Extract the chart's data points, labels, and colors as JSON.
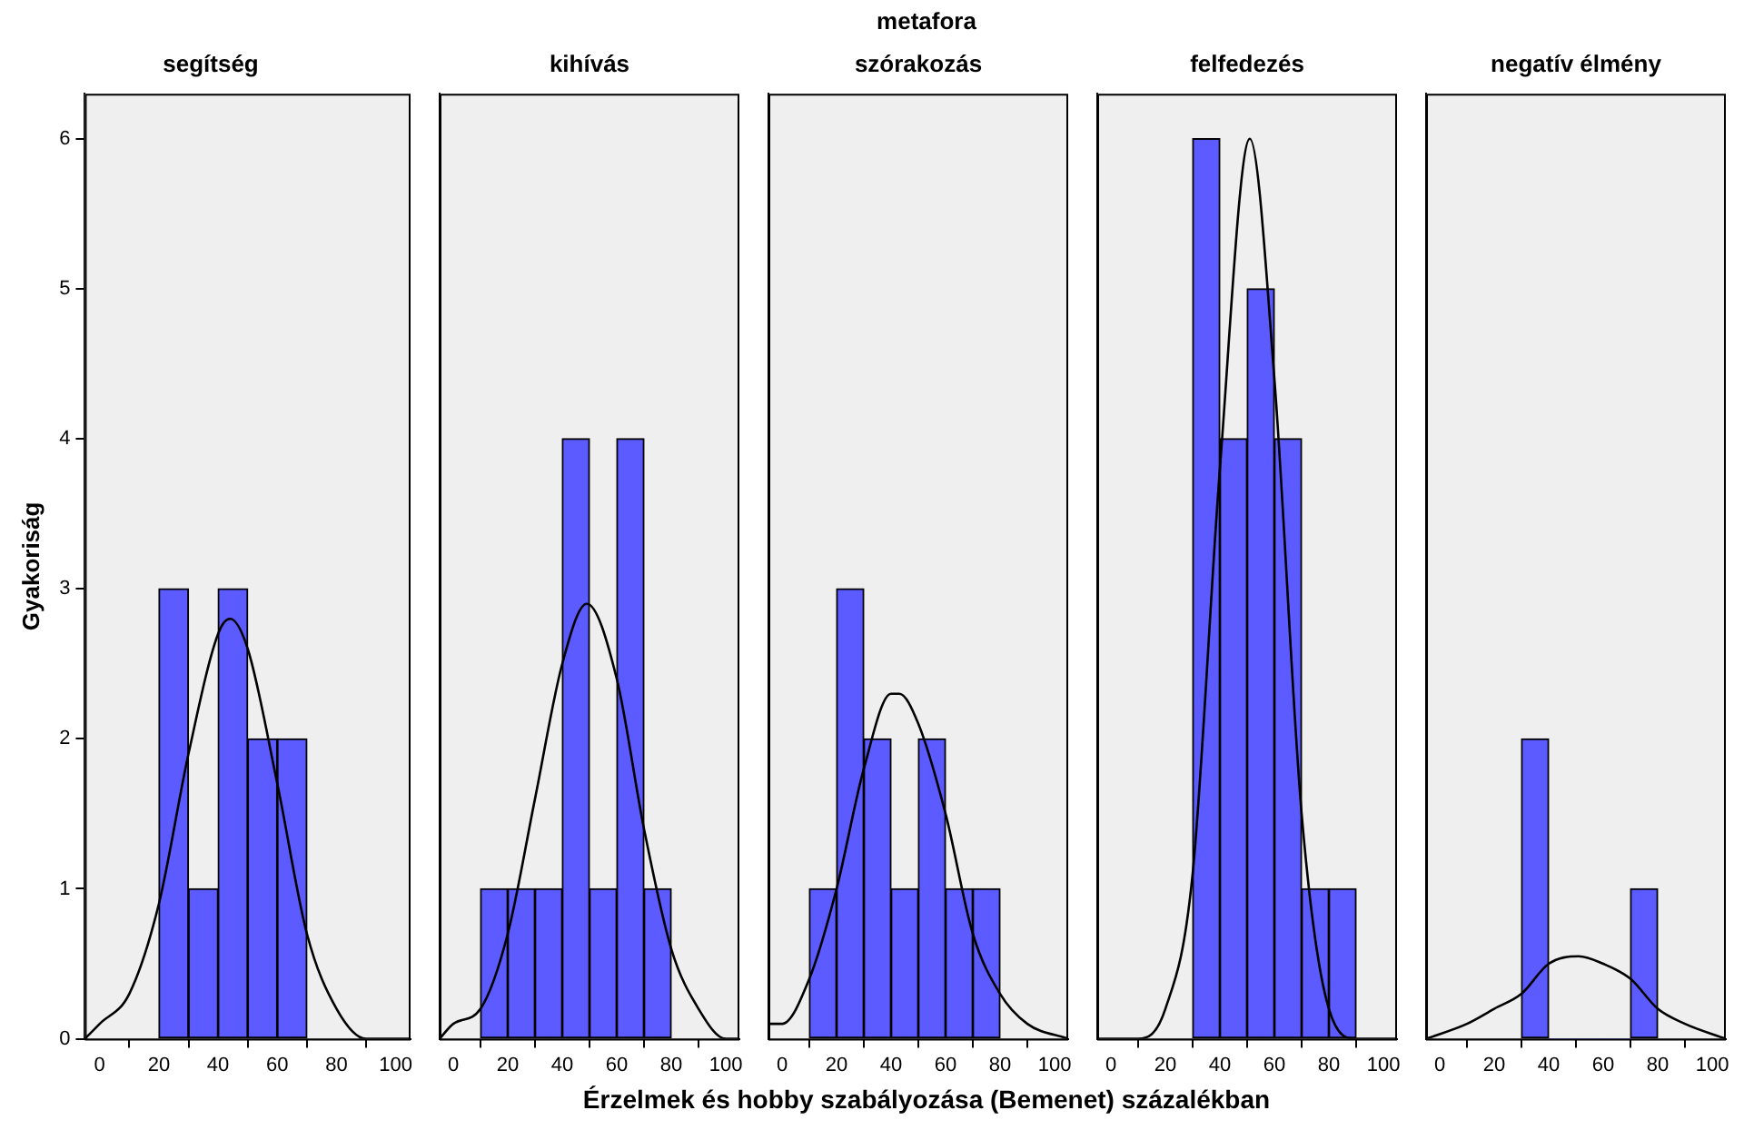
{
  "chart_data": [
    {
      "type": "histogram",
      "title": "segítség",
      "ylabel": "Gyakoriság",
      "color": "#5b5bff",
      "bins": [
        20,
        30,
        40,
        50,
        60,
        70
      ],
      "values": [
        3,
        1,
        3,
        2,
        2
      ],
      "series": [
        {
          "type": "line",
          "color": "#000000",
          "x": [
            -5,
            0,
            10,
            20,
            30,
            40,
            44,
            50,
            60,
            70,
            80,
            90,
            105
          ],
          "values": [
            0,
            0.1,
            0.3,
            0.9,
            1.9,
            2.7,
            2.8,
            2.6,
            1.7,
            0.7,
            0.2,
            0,
            0
          ]
        }
      ],
      "xlim": [
        -5,
        105
      ],
      "xticks": [
        0,
        20,
        40,
        60,
        80,
        100
      ],
      "ylim": [
        0,
        6.3
      ],
      "yticks": [
        0,
        1,
        2,
        3,
        4,
        5,
        6
      ],
      "grid": false,
      "legend": false
    },
    {
      "type": "histogram",
      "title": "kihívás",
      "color": "#5b5bff",
      "bins": [
        10,
        20,
        30,
        40,
        50,
        60,
        70,
        80
      ],
      "values": [
        1,
        1,
        1,
        4,
        1,
        4,
        1
      ],
      "series": [
        {
          "type": "line",
          "color": "#000000",
          "x": [
            -5,
            0,
            10,
            20,
            30,
            40,
            49,
            60,
            70,
            80,
            90,
            100,
            105
          ],
          "values": [
            0,
            0.1,
            0.2,
            0.7,
            1.6,
            2.5,
            2.9,
            2.4,
            1.4,
            0.6,
            0.2,
            0,
            0
          ]
        }
      ],
      "xlim": [
        -5,
        105
      ],
      "xticks": [
        0,
        20,
        40,
        60,
        80,
        100
      ],
      "ylim": [
        0,
        6.3
      ],
      "yticks": [
        0,
        1,
        2,
        3,
        4,
        5,
        6
      ],
      "tick_labels": "x",
      "grid": false,
      "legend": false
    },
    {
      "type": "histogram",
      "title": "szórakozás",
      "annotations": [
        "metafora"
      ],
      "xlabel": "Érzelmek és hobby szabályozása (Bemenet) százalékban",
      "color": "#5b5bff",
      "bins": [
        10,
        20,
        30,
        40,
        50,
        60,
        70,
        80
      ],
      "values": [
        1,
        3,
        2,
        1,
        2,
        1,
        1
      ],
      "series": [
        {
          "type": "line",
          "color": "#000000",
          "x": [
            -5,
            0,
            10,
            20,
            30,
            40,
            43,
            50,
            60,
            70,
            80,
            90,
            105
          ],
          "values": [
            0.1,
            0.1,
            0.4,
            1,
            1.8,
            2.3,
            2.3,
            2.1,
            1.5,
            0.7,
            0.3,
            0.1,
            0
          ]
        }
      ],
      "xlim": [
        -5,
        105
      ],
      "xticks": [
        0,
        20,
        40,
        60,
        80,
        100
      ],
      "ylim": [
        0,
        6.3
      ],
      "yticks": [
        0,
        1,
        2,
        3,
        4,
        5,
        6
      ],
      "tick_labels": "x",
      "grid": false,
      "legend": false
    },
    {
      "type": "histogram",
      "title": "felfedezés",
      "color": "#5b5bff",
      "bins": [
        30,
        40,
        50,
        60,
        70,
        80,
        90
      ],
      "values": [
        6,
        4,
        5,
        4,
        1,
        1
      ],
      "series": [
        {
          "type": "line",
          "color": "#000000",
          "x": [
            -5,
            10,
            20,
            30,
            40,
            51,
            60,
            70,
            80,
            90,
            105
          ],
          "values": [
            0,
            0,
            0.2,
            1.1,
            3.8,
            6,
            4.4,
            1.5,
            0.2,
            0,
            0
          ]
        }
      ],
      "xlim": [
        -5,
        105
      ],
      "xticks": [
        0,
        20,
        40,
        60,
        80,
        100
      ],
      "ylim": [
        0,
        6.3
      ],
      "yticks": [
        0,
        1,
        2,
        3,
        4,
        5,
        6
      ],
      "tick_labels": "x",
      "grid": false,
      "legend": false
    },
    {
      "type": "histogram",
      "title": "negatív élmény",
      "color": "#5b5bff",
      "bins": [
        30,
        40,
        50,
        60,
        70,
        80
      ],
      "values": [
        2,
        0,
        0,
        0,
        1
      ],
      "series": [
        {
          "type": "line",
          "color": "#000000",
          "x": [
            -5,
            10,
            20,
            30,
            40,
            51,
            60,
            70,
            80,
            90,
            105
          ],
          "values": [
            0,
            0.1,
            0.2,
            0.3,
            0.5,
            0.55,
            0.5,
            0.4,
            0.2,
            0.1,
            0
          ]
        }
      ],
      "xlim": [
        -5,
        105
      ],
      "xticks": [
        0,
        20,
        40,
        60,
        80,
        100
      ],
      "ylim": [
        0,
        6.3
      ],
      "yticks": [
        0,
        1,
        2,
        3,
        4,
        5,
        6
      ],
      "tick_labels": "x",
      "grid": false,
      "legend": false
    }
  ]
}
